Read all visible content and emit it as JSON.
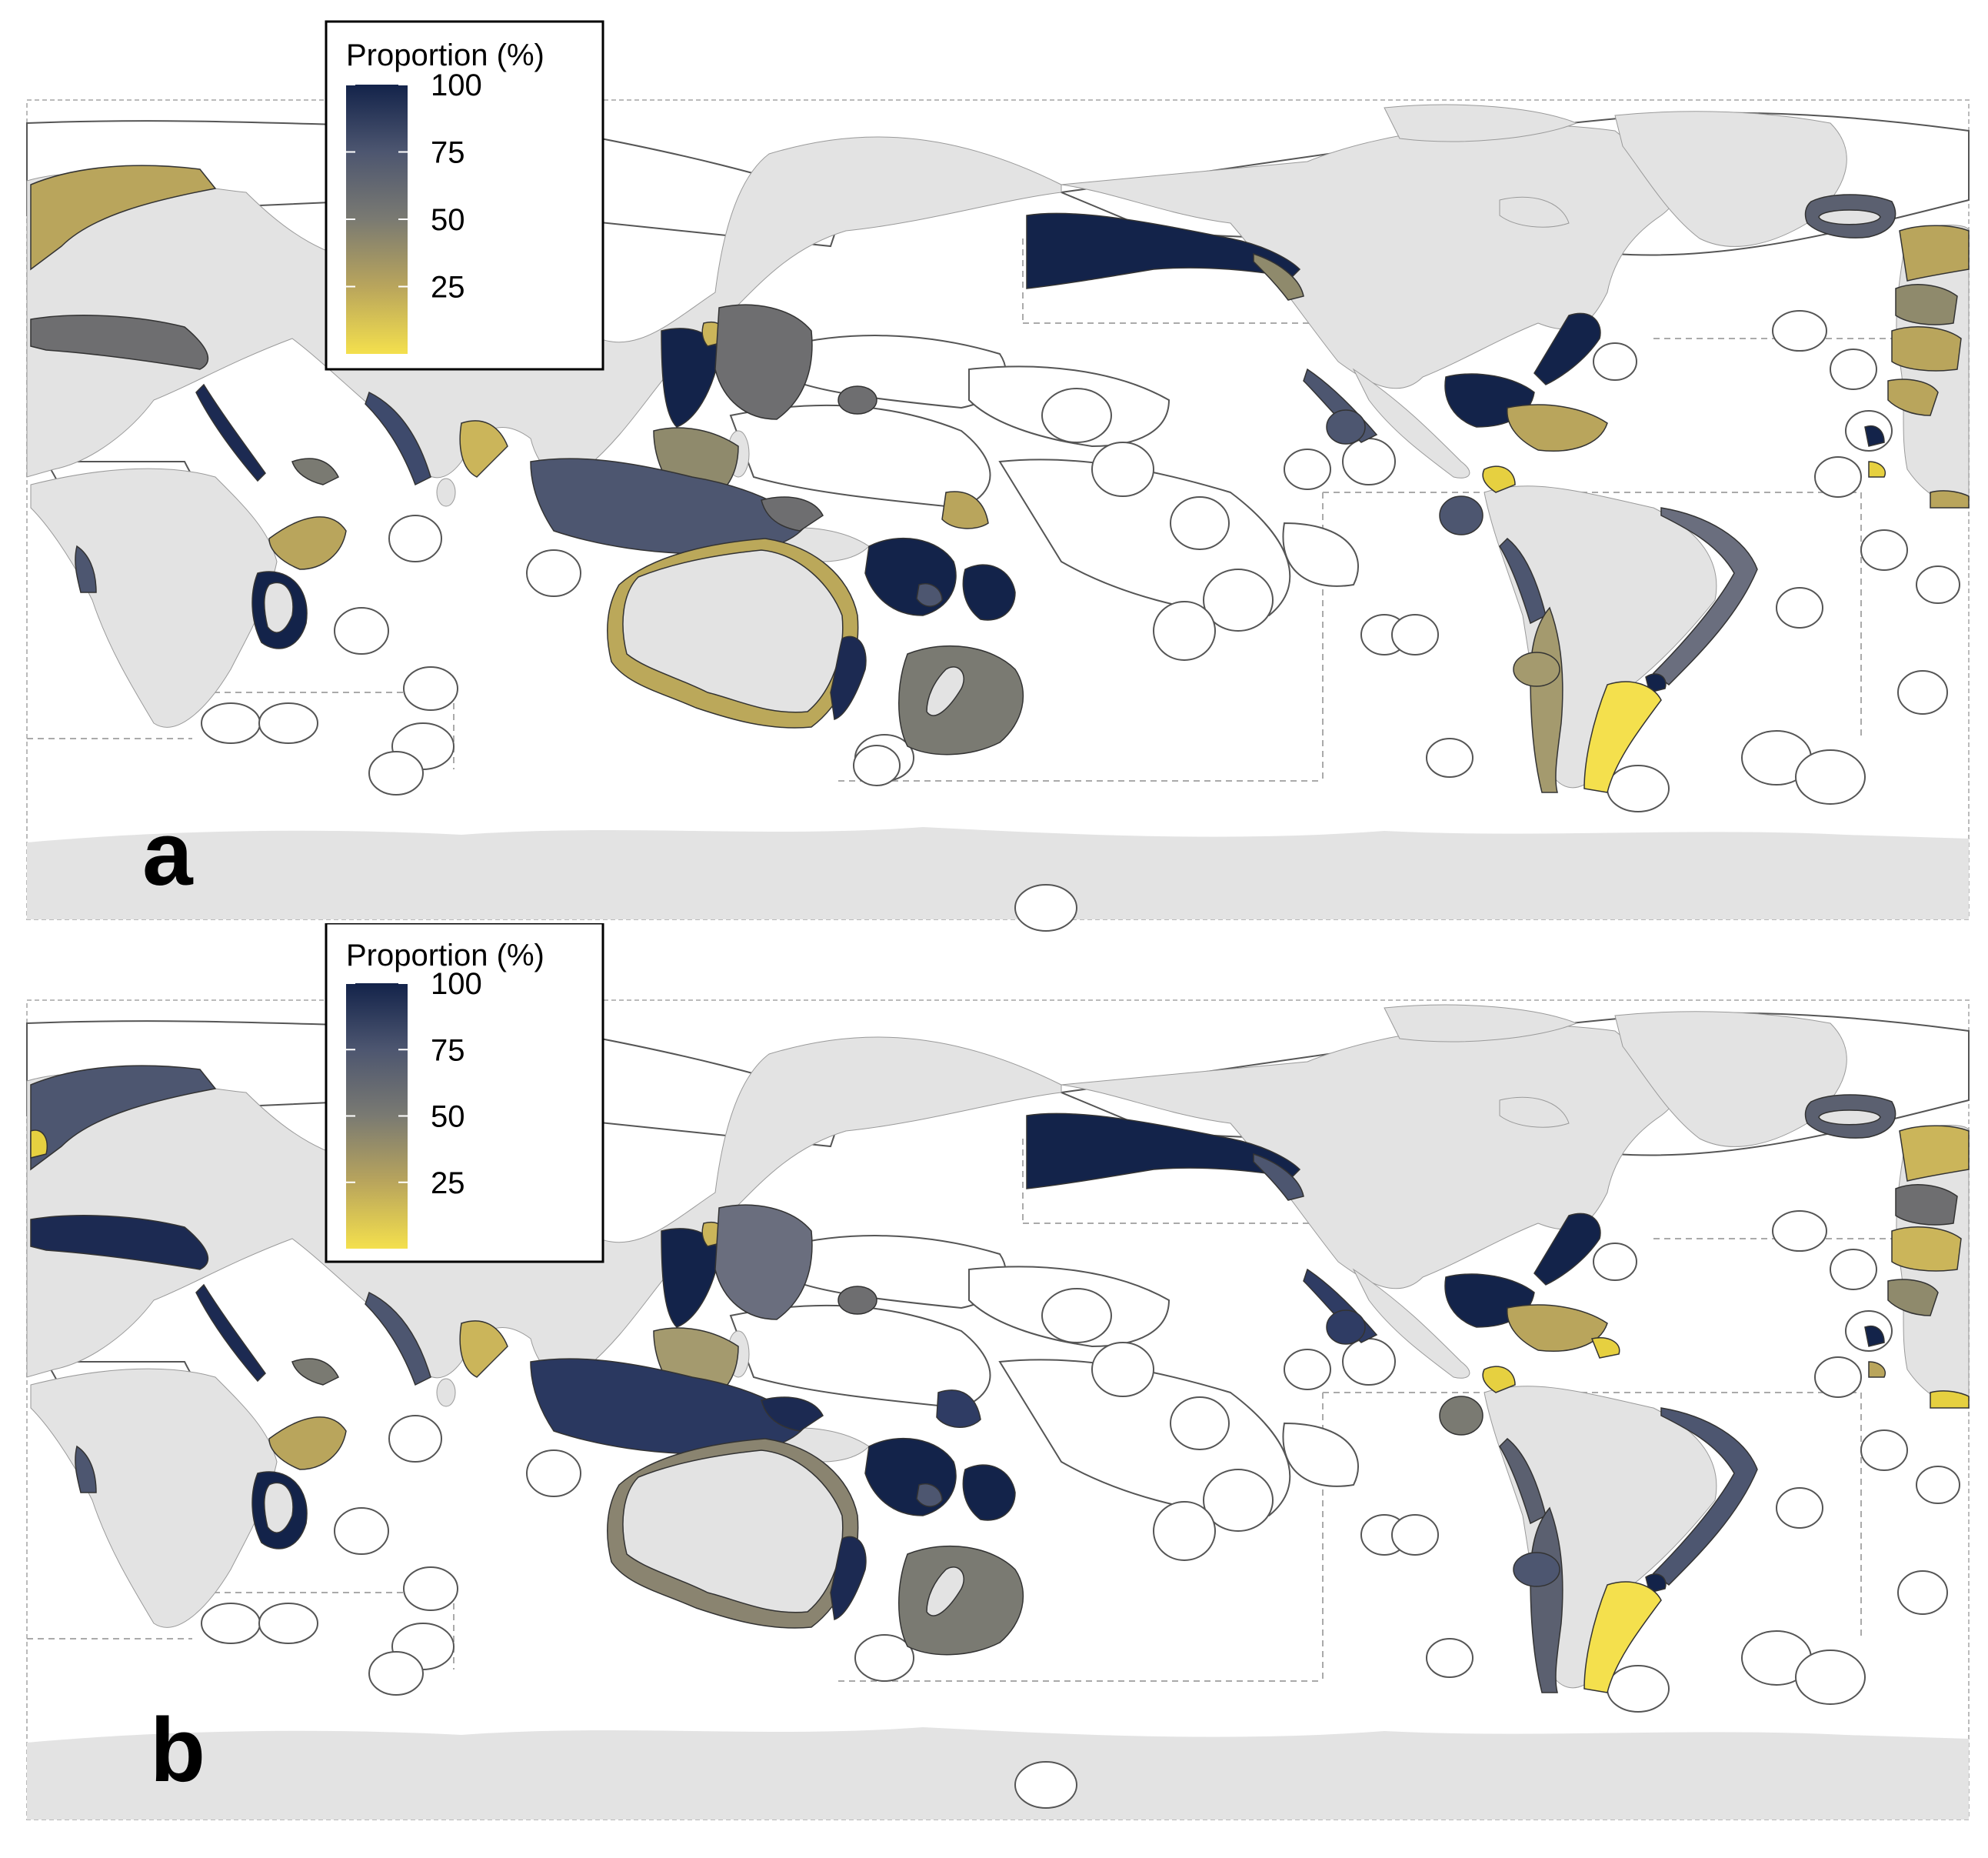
{
  "legend": {
    "title": "Proportion (%)",
    "ticks": [
      100,
      75,
      50,
      25
    ],
    "min": 0,
    "max": 100,
    "colors": [
      "#f4e04d",
      "#b9a55c",
      "#7a7a72",
      "#4d5670",
      "#13234a"
    ]
  },
  "palette": {
    "land": "#e3e3e3",
    "eez_outline": "#555555",
    "ocean": "#ffffff",
    "grid": "#aaaaaa"
  },
  "panels": [
    {
      "letter": "a",
      "regions": [
        {
          "name": "norway",
          "value": 30
        },
        {
          "name": "mediterranean",
          "value": 60
        },
        {
          "name": "red-sea",
          "value": 90
        },
        {
          "name": "arabian-sea-west-india",
          "value": 85
        },
        {
          "name": "east-india",
          "value": 15
        },
        {
          "name": "madagascar",
          "value": 100
        },
        {
          "name": "mozambique-channel",
          "value": 25
        },
        {
          "name": "west-africa",
          "value": 70
        },
        {
          "name": "japan",
          "value": 92
        },
        {
          "name": "korea",
          "value": 15
        },
        {
          "name": "china-east",
          "value": 50
        },
        {
          "name": "indonesia",
          "value": 75
        },
        {
          "name": "philippines",
          "value": 40
        },
        {
          "name": "australia",
          "value": 25
        },
        {
          "name": "east-australia",
          "value": 90
        },
        {
          "name": "new-zealand",
          "value": 50
        },
        {
          "name": "new-caledonia",
          "value": 100
        },
        {
          "name": "fiji",
          "value": 100
        },
        {
          "name": "alaska",
          "value": 100
        },
        {
          "name": "canada-west",
          "value": 50
        },
        {
          "name": "us-east",
          "value": 100
        },
        {
          "name": "gulf-of-mexico",
          "value": 100
        },
        {
          "name": "mexico-pacific",
          "value": 70
        },
        {
          "name": "caribbean",
          "value": 25
        },
        {
          "name": "peru-chile",
          "value": 80
        },
        {
          "name": "chile-south",
          "value": 30
        },
        {
          "name": "brazil",
          "value": 60
        },
        {
          "name": "argentina",
          "value": 5
        },
        {
          "name": "iceland",
          "value": 60
        },
        {
          "name": "europe-west",
          "value": 30
        }
      ]
    },
    {
      "letter": "b",
      "regions": [
        {
          "name": "norway",
          "value": 75
        },
        {
          "name": "mediterranean",
          "value": 90
        },
        {
          "name": "red-sea",
          "value": 90
        },
        {
          "name": "arabian-sea-west-india",
          "value": 80
        },
        {
          "name": "east-india",
          "value": 15
        },
        {
          "name": "madagascar",
          "value": 100
        },
        {
          "name": "mozambique-channel",
          "value": 25
        },
        {
          "name": "west-africa",
          "value": 75
        },
        {
          "name": "japan",
          "value": 92
        },
        {
          "name": "korea",
          "value": 15
        },
        {
          "name": "china-east",
          "value": 55
        },
        {
          "name": "indonesia",
          "value": 90
        },
        {
          "name": "philippines",
          "value": 30
        },
        {
          "name": "australia",
          "value": 40
        },
        {
          "name": "east-australia",
          "value": 90
        },
        {
          "name": "new-zealand",
          "value": 50
        },
        {
          "name": "new-caledonia",
          "value": 100
        },
        {
          "name": "fiji",
          "value": 100
        },
        {
          "name": "alaska",
          "value": 100
        },
        {
          "name": "canada-west",
          "value": 70
        },
        {
          "name": "us-east",
          "value": 100
        },
        {
          "name": "gulf-of-mexico",
          "value": 100
        },
        {
          "name": "mexico-pacific",
          "value": 85
        },
        {
          "name": "caribbean",
          "value": 15
        },
        {
          "name": "peru-chile",
          "value": 70
        },
        {
          "name": "chile-south",
          "value": 70
        },
        {
          "name": "brazil",
          "value": 75
        },
        {
          "name": "argentina",
          "value": 5
        },
        {
          "name": "iceland",
          "value": 60
        },
        {
          "name": "europe-west",
          "value": 20
        }
      ]
    }
  ]
}
